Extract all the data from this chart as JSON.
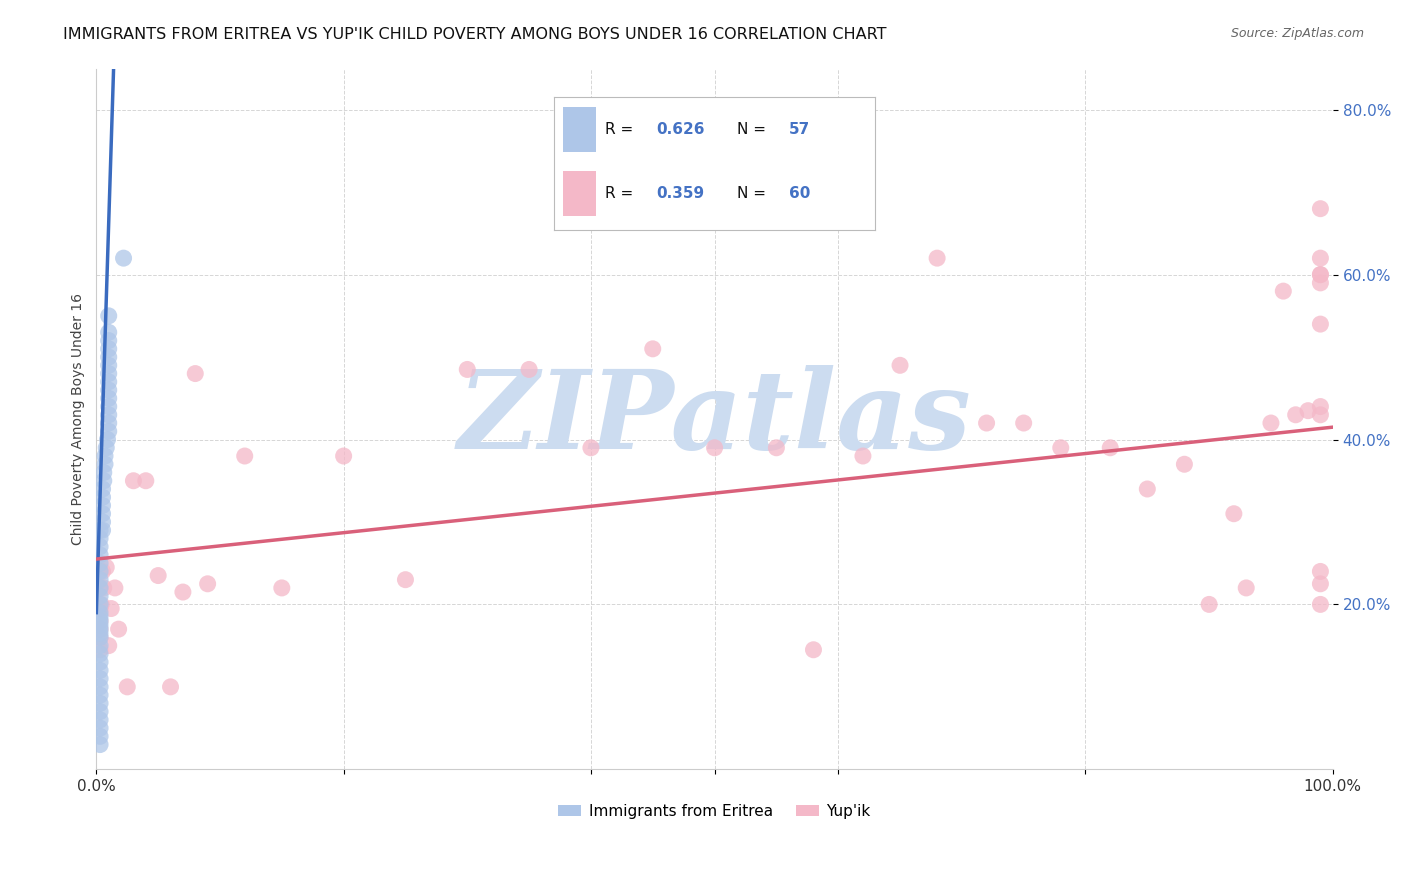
{
  "title": "IMMIGRANTS FROM ERITREA VS YUP'IK CHILD POVERTY AMONG BOYS UNDER 16 CORRELATION CHART",
  "source": "Source: ZipAtlas.com",
  "ylabel": "Child Poverty Among Boys Under 16",
  "xlim": [
    0,
    1.0
  ],
  "ylim": [
    0,
    0.85
  ],
  "ytick_labels": [
    "20.0%",
    "40.0%",
    "60.0%",
    "80.0%"
  ],
  "ytick_positions": [
    0.2,
    0.4,
    0.6,
    0.8
  ],
  "legend_label1": "Immigrants from Eritrea",
  "legend_label2": "Yup'ik",
  "R1": "0.626",
  "N1": "57",
  "R2": "0.359",
  "N2": "60",
  "color1": "#aec6e8",
  "color2": "#f4b8c8",
  "line_color1": "#3a6bbf",
  "line_color2": "#d9607a",
  "watermark_text": "ZIPatlas",
  "watermark_color": "#ccdcf0",
  "eritrea_x": [
    0.003,
    0.003,
    0.003,
    0.003,
    0.003,
    0.003,
    0.003,
    0.003,
    0.003,
    0.003,
    0.003,
    0.003,
    0.003,
    0.003,
    0.003,
    0.003,
    0.003,
    0.003,
    0.003,
    0.003,
    0.003,
    0.003,
    0.003,
    0.003,
    0.003,
    0.003,
    0.003,
    0.003,
    0.003,
    0.003,
    0.005,
    0.005,
    0.005,
    0.005,
    0.005,
    0.005,
    0.006,
    0.006,
    0.007,
    0.007,
    0.008,
    0.009,
    0.01,
    0.01,
    0.01,
    0.01,
    0.01,
    0.01,
    0.01,
    0.01,
    0.01,
    0.01,
    0.01,
    0.01,
    0.01,
    0.01,
    0.022
  ],
  "eritrea_y": [
    0.03,
    0.04,
    0.05,
    0.06,
    0.07,
    0.08,
    0.09,
    0.1,
    0.11,
    0.12,
    0.13,
    0.14,
    0.15,
    0.16,
    0.165,
    0.17,
    0.175,
    0.18,
    0.185,
    0.19,
    0.2,
    0.21,
    0.22,
    0.23,
    0.24,
    0.25,
    0.26,
    0.27,
    0.28,
    0.29,
    0.29,
    0.3,
    0.31,
    0.32,
    0.33,
    0.34,
    0.35,
    0.36,
    0.37,
    0.38,
    0.39,
    0.4,
    0.41,
    0.42,
    0.43,
    0.44,
    0.45,
    0.46,
    0.47,
    0.48,
    0.49,
    0.5,
    0.51,
    0.52,
    0.53,
    0.55,
    0.62
  ],
  "yupik_x": [
    0.003,
    0.003,
    0.003,
    0.003,
    0.003,
    0.003,
    0.004,
    0.005,
    0.006,
    0.008,
    0.01,
    0.012,
    0.015,
    0.018,
    0.025,
    0.03,
    0.04,
    0.05,
    0.06,
    0.07,
    0.08,
    0.09,
    0.12,
    0.15,
    0.2,
    0.25,
    0.3,
    0.35,
    0.4,
    0.45,
    0.5,
    0.55,
    0.58,
    0.62,
    0.65,
    0.68,
    0.72,
    0.75,
    0.78,
    0.82,
    0.85,
    0.88,
    0.9,
    0.92,
    0.93,
    0.95,
    0.96,
    0.97,
    0.98,
    0.99,
    0.99,
    0.99,
    0.99,
    0.99,
    0.99,
    0.99,
    0.99,
    0.99,
    0.99,
    0.99
  ],
  "yupik_y": [
    0.22,
    0.195,
    0.18,
    0.17,
    0.16,
    0.145,
    0.2,
    0.24,
    0.22,
    0.245,
    0.15,
    0.195,
    0.22,
    0.17,
    0.1,
    0.35,
    0.35,
    0.235,
    0.1,
    0.215,
    0.48,
    0.225,
    0.38,
    0.22,
    0.38,
    0.23,
    0.485,
    0.485,
    0.39,
    0.51,
    0.39,
    0.39,
    0.145,
    0.38,
    0.49,
    0.62,
    0.42,
    0.42,
    0.39,
    0.39,
    0.34,
    0.37,
    0.2,
    0.31,
    0.22,
    0.42,
    0.58,
    0.43,
    0.435,
    0.225,
    0.59,
    0.43,
    0.44,
    0.2,
    0.6,
    0.54,
    0.62,
    0.24,
    0.6,
    0.68
  ]
}
